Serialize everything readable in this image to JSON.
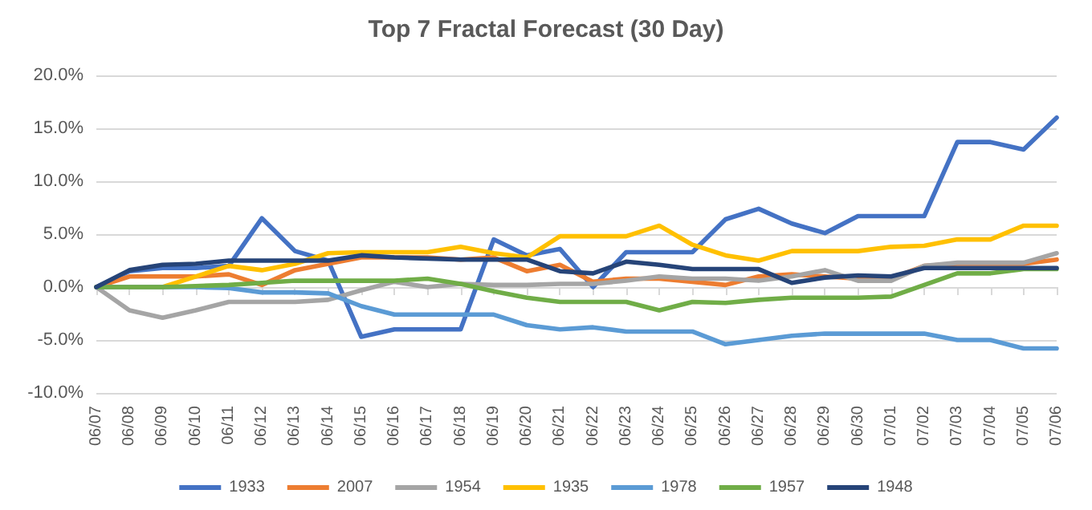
{
  "chart_data": {
    "type": "line",
    "title": "Top 7 Fractal Forecast (30 Day)",
    "categories": [
      "06/07",
      "06/08",
      "06/09",
      "06/10",
      "06/11",
      "06/12",
      "06/13",
      "06/14",
      "06/15",
      "06/16",
      "06/17",
      "06/18",
      "06/19",
      "06/20",
      "06/21",
      "06/22",
      "06/23",
      "06/24",
      "06/25",
      "06/26",
      "06/27",
      "06/28",
      "06/29",
      "06/30",
      "07/01",
      "07/02",
      "07/03",
      "07/04",
      "07/05",
      "07/06"
    ],
    "series": [
      {
        "name": "1933",
        "color": "#4472c4",
        "values": [
          0,
          1.5,
          1.8,
          1.8,
          2.0,
          6.5,
          3.4,
          2.5,
          -4.7,
          -4.0,
          -4.0,
          -4.0,
          4.5,
          3.0,
          3.6,
          0.0,
          3.3,
          3.3,
          3.3,
          6.4,
          7.4,
          6.0,
          5.1,
          6.7,
          6.7,
          6.7,
          13.7,
          13.7,
          13.0,
          16.0
        ]
      },
      {
        "name": "2007",
        "color": "#ed7d31",
        "values": [
          0,
          1.0,
          1.0,
          1.0,
          1.2,
          0.2,
          1.6,
          2.2,
          2.8,
          2.8,
          2.8,
          2.6,
          2.8,
          1.5,
          2.1,
          0.5,
          0.8,
          0.8,
          0.5,
          0.2,
          1.0,
          1.2,
          1.0,
          0.8,
          0.8,
          2.0,
          2.2,
          2.2,
          2.2,
          2.6
        ]
      },
      {
        "name": "1954",
        "color": "#a5a5a5",
        "values": [
          0,
          -2.2,
          -2.9,
          -2.2,
          -1.4,
          -1.4,
          -1.4,
          -1.2,
          -0.3,
          0.5,
          0.0,
          0.3,
          0.2,
          0.2,
          0.3,
          0.3,
          0.6,
          1.0,
          0.8,
          0.8,
          0.6,
          1.0,
          1.6,
          0.6,
          0.6,
          2.0,
          2.3,
          2.3,
          2.3,
          3.2
        ]
      },
      {
        "name": "1935",
        "color": "#ffc000",
        "values": [
          0,
          0,
          0,
          1.0,
          2.0,
          1.6,
          2.2,
          3.2,
          3.3,
          3.3,
          3.3,
          3.8,
          3.2,
          2.8,
          4.8,
          4.8,
          4.8,
          5.8,
          4.0,
          3.0,
          2.5,
          3.4,
          3.4,
          3.4,
          3.8,
          3.9,
          4.5,
          4.5,
          5.8,
          5.8
        ]
      },
      {
        "name": "1978",
        "color": "#5b9bd5",
        "values": [
          0,
          0,
          0,
          0,
          -0.1,
          -0.5,
          -0.5,
          -0.6,
          -1.8,
          -2.6,
          -2.6,
          -2.6,
          -2.6,
          -3.6,
          -4.0,
          -3.8,
          -4.2,
          -4.2,
          -4.2,
          -5.4,
          -5.0,
          -4.6,
          -4.4,
          -4.4,
          -4.4,
          -4.4,
          -5.0,
          -5.0,
          -5.8,
          -5.8
        ]
      },
      {
        "name": "1957",
        "color": "#70ad47",
        "values": [
          0,
          0,
          0,
          0.1,
          0.2,
          0.4,
          0.6,
          0.6,
          0.6,
          0.6,
          0.8,
          0.3,
          -0.4,
          -1.0,
          -1.4,
          -1.4,
          -1.4,
          -2.2,
          -1.4,
          -1.5,
          -1.2,
          -1.0,
          -1.0,
          -1.0,
          -0.9,
          0.2,
          1.3,
          1.3,
          1.7,
          1.7
        ]
      },
      {
        "name": "1948",
        "color": "#264478",
        "values": [
          0,
          1.6,
          2.1,
          2.2,
          2.5,
          2.5,
          2.5,
          2.5,
          3.0,
          2.8,
          2.7,
          2.6,
          2.6,
          2.6,
          1.5,
          1.3,
          2.4,
          2.1,
          1.7,
          1.7,
          1.7,
          0.4,
          0.9,
          1.1,
          1.0,
          1.8,
          1.8,
          1.8,
          1.8,
          1.8
        ]
      }
    ],
    "ylim": [
      -10,
      20
    ],
    "yticks": [
      {
        "value": -10,
        "label": "-10.0%"
      },
      {
        "value": -5,
        "label": "-5.0%"
      },
      {
        "value": 0,
        "label": "0.0%"
      },
      {
        "value": 5,
        "label": "5.0%"
      },
      {
        "value": 10,
        "label": "10.0%"
      },
      {
        "value": 15,
        "label": "15.0%"
      },
      {
        "value": 20,
        "label": "20.0%"
      }
    ],
    "grid": "y",
    "legend": "bottom",
    "marker": "none",
    "line_style": "solid"
  }
}
